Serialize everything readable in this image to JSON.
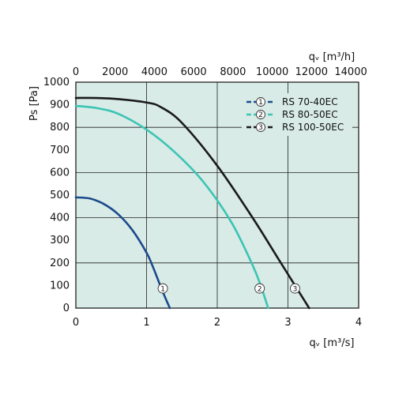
{
  "chart_data": {
    "type": "line",
    "xlabel": "qᵥ [m³/s]",
    "ylabel": "Ps [Pa]",
    "x2label": "qᵥ [m³/h]",
    "xlim": [
      0,
      4
    ],
    "x2lim": [
      0,
      14400
    ],
    "ylim": [
      0,
      1000
    ],
    "x_ticks": [
      "0",
      "1",
      "2",
      "3",
      "4"
    ],
    "x2_ticks": [
      "0",
      "2000",
      "4000",
      "6000",
      "8000",
      "10000",
      "12000",
      "14000"
    ],
    "y_ticks": [
      "0",
      "100",
      "200",
      "300",
      "400",
      "500",
      "600",
      "700",
      "800",
      "900",
      "1000"
    ],
    "grid": true,
    "legend_position": "top-right",
    "background_color": "#d8ebe6",
    "series": [
      {
        "name": "RS 70-40EC",
        "marker": "1",
        "color": "#1b4a8c",
        "x": [
          0,
          0.2,
          0.4,
          0.6,
          0.8,
          1.0,
          1.1,
          1.2,
          1.28,
          1.33
        ],
        "y": [
          490,
          485,
          460,
          415,
          345,
          245,
          175,
          95,
          35,
          0
        ]
      },
      {
        "name": "RS 80-50EC",
        "marker": "2",
        "color": "#3cc4b4",
        "x": [
          0,
          0.3,
          0.6,
          1.0,
          1.4,
          1.8,
          2.2,
          2.5,
          2.62,
          2.72
        ],
        "y": [
          895,
          885,
          860,
          790,
          690,
          560,
          380,
          190,
          95,
          0
        ]
      },
      {
        "name": "RS 100-50EC",
        "marker": "3",
        "color": "#1a1a1a",
        "x": [
          0,
          0.3,
          0.6,
          1.0,
          1.2,
          1.5,
          2.0,
          2.5,
          2.85,
          3.1,
          3.3
        ],
        "y": [
          930,
          930,
          925,
          910,
          890,
          820,
          630,
          400,
          225,
          100,
          0
        ]
      }
    ],
    "markers": [
      {
        "label": "1",
        "series": 0,
        "x": 1.23,
        "y": 80
      },
      {
        "label": "2",
        "series": 1,
        "x": 2.6,
        "y": 80
      },
      {
        "label": "3",
        "series": 2,
        "x": 3.1,
        "y": 80
      }
    ]
  }
}
